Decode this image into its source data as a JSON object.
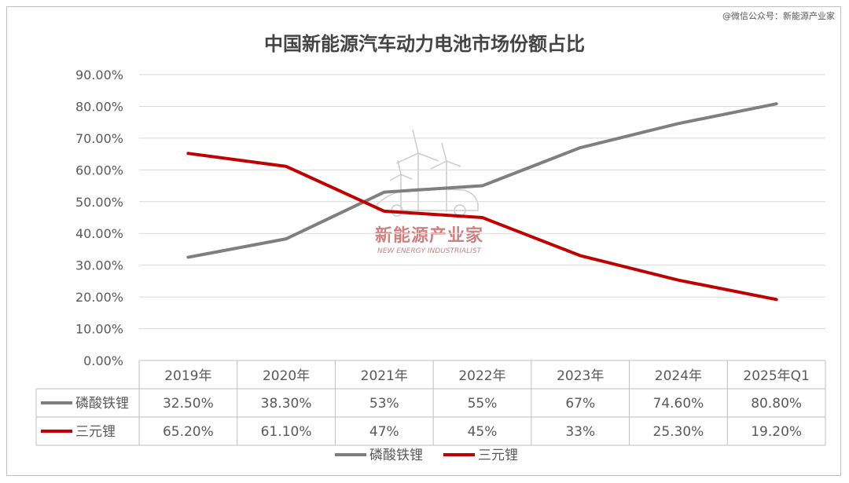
{
  "credit": "@微信公众号：新能源产业家",
  "watermark": {
    "name_cn": "新能源产业家",
    "name_en": "NEW ENERGY INDUSTRIALIST"
  },
  "chart_data": {
    "type": "line",
    "title": "中国新能源汽车动力电池市场份额占比",
    "categories": [
      "2019年",
      "2020年",
      "2021年",
      "2022年",
      "2023年",
      "2024年",
      "2025年Q1"
    ],
    "y_ticks": [
      "0.00%",
      "10.00%",
      "20.00%",
      "30.00%",
      "40.00%",
      "50.00%",
      "60.00%",
      "70.00%",
      "80.00%",
      "90.00%"
    ],
    "ylim": [
      0,
      90
    ],
    "grid": true,
    "legend_position": "bottom",
    "data_table": true,
    "series": [
      {
        "name": "磷酸铁锂",
        "color": "#7f7f7f",
        "values": [
          32.5,
          38.3,
          53,
          55,
          67,
          74.6,
          80.8
        ],
        "labels": [
          "32.50%",
          "38.30%",
          "53%",
          "55%",
          "67%",
          "74.60%",
          "80.80%"
        ]
      },
      {
        "name": "三元锂",
        "color": "#c00000",
        "values": [
          65.2,
          61.1,
          47,
          45,
          33,
          25.3,
          19.2
        ],
        "labels": [
          "65.20%",
          "61.10%",
          "47%",
          "45%",
          "33%",
          "25.30%",
          "19.20%"
        ]
      }
    ]
  }
}
